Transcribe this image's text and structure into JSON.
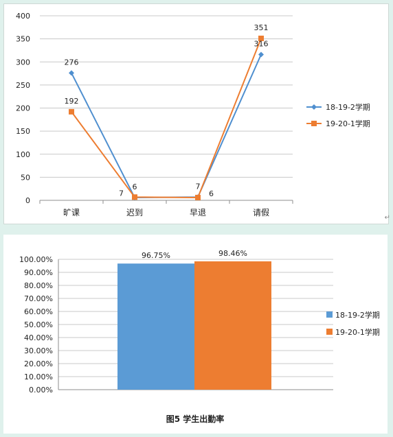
{
  "chart_data": [
    {
      "type": "line",
      "categories": [
        "旷课",
        "迟到",
        "早退",
        "请假"
      ],
      "ylim": [
        0,
        400
      ],
      "yticks": [
        "0",
        "50",
        "100",
        "150",
        "200",
        "250",
        "300",
        "350",
        "400"
      ],
      "grid": true,
      "legend_position": "right",
      "series": [
        {
          "name": "18-19-2学期",
          "values": [
            276,
            6,
            7,
            316
          ],
          "labels": [
            "276",
            "6",
            "7",
            "316"
          ],
          "color": "#4f8fcf",
          "marker": "diamond"
        },
        {
          "name": "19-20-1学期",
          "values": [
            192,
            7,
            6,
            351
          ],
          "labels": [
            "192",
            "7",
            "6",
            "351"
          ],
          "color": "#ed7d31",
          "marker": "square"
        }
      ]
    },
    {
      "type": "bar",
      "ylim": [
        0,
        100
      ],
      "yticks": [
        "0.00%",
        "10.00%",
        "20.00%",
        "30.00%",
        "40.00%",
        "50.00%",
        "60.00%",
        "70.00%",
        "80.00%",
        "90.00%",
        "100.00%"
      ],
      "grid": true,
      "legend_position": "right",
      "series": [
        {
          "name": "18-19-2学期",
          "values": [
            96.75
          ],
          "label": "96.75%",
          "color": "#5b9bd5"
        },
        {
          "name": "19-20-1学期",
          "values": [
            98.46
          ],
          "label": "98.46%",
          "color": "#ed7d31"
        }
      ],
      "caption": "图5   学生出勤率"
    }
  ]
}
